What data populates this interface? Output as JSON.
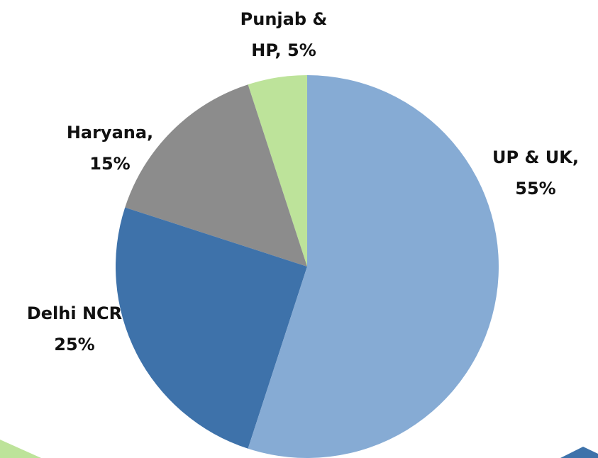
{
  "chart_data": {
    "type": "pie",
    "categories": [
      "UP & UK,",
      "Delhi NCR",
      "Haryana,",
      "Punjab & HP,"
    ],
    "values": [
      55,
      25,
      15,
      5
    ],
    "value_labels": [
      "55%",
      "25%",
      "15%",
      "5%"
    ],
    "colors": [
      "#86abd4",
      "#3e72aa",
      "#8c8c8c",
      "#bde39a"
    ]
  }
}
